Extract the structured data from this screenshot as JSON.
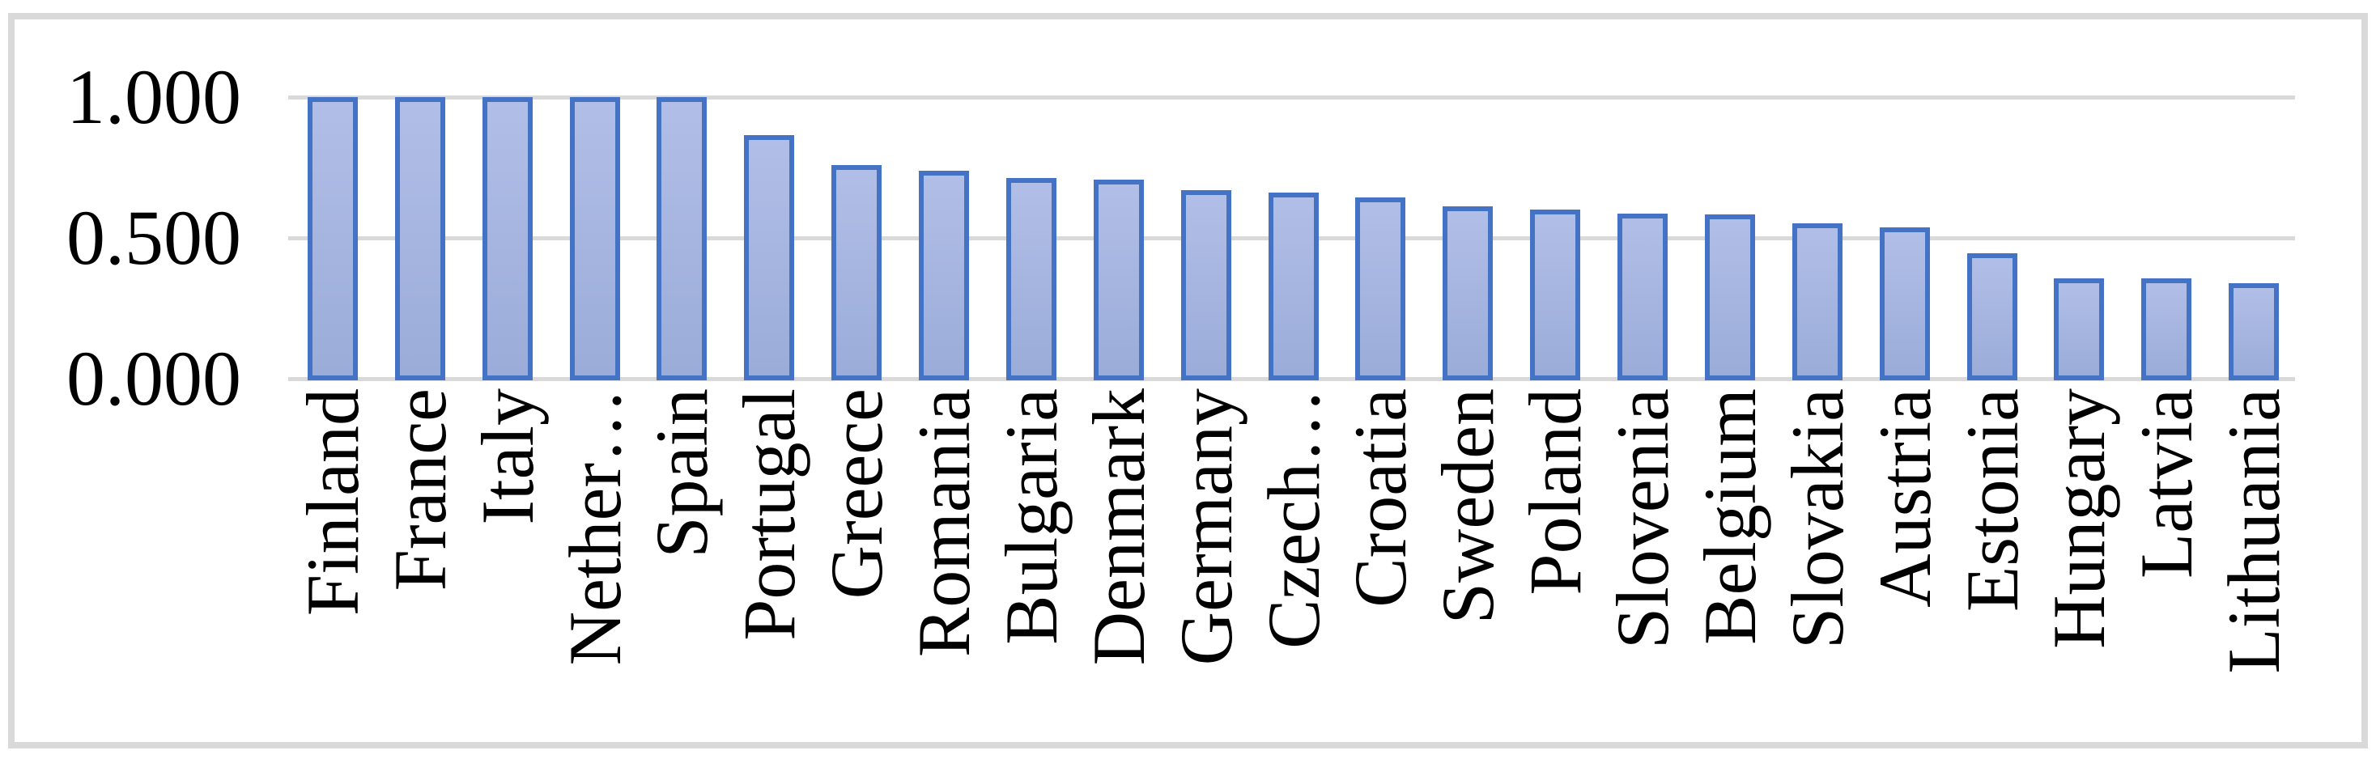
{
  "chart_data": {
    "type": "bar",
    "title": "",
    "xlabel": "",
    "ylabel": "",
    "categories": [
      "Finland",
      "France",
      "Italy",
      "Nether…",
      "Spain",
      "Portugal",
      "Greece",
      "Romania",
      "Bulgaria",
      "Denmark",
      "Germany",
      "Czech…",
      "Croatia",
      "Sweden",
      "Poland",
      "Slovenia",
      "Belgium",
      "Slovakia",
      "Austria",
      "Estonia",
      "Hungary",
      "Latvia",
      "Lithuania"
    ],
    "values": [
      1.0,
      1.0,
      1.0,
      1.0,
      1.0,
      0.865,
      0.759,
      0.739,
      0.713,
      0.707,
      0.67,
      0.661,
      0.644,
      0.612,
      0.601,
      0.586,
      0.584,
      0.552,
      0.537,
      0.445,
      0.356,
      0.356,
      0.339
    ],
    "ylim": [
      0,
      1
    ],
    "y_ticks": [
      {
        "label": "1.000",
        "value": 1.0
      },
      {
        "label": "0.500",
        "value": 0.5
      },
      {
        "label": "0.000",
        "value": 0.0
      }
    ],
    "grid": "horizontal",
    "legend": "none",
    "colors": {
      "bar_border": "#4472C4",
      "bar_fill_top": "#B1BEE7",
      "bar_fill_bottom": "#9BACD9",
      "gridline": "#D9D9D9",
      "frame_border": "#D9D9D9",
      "label_text": "#000000",
      "background": "#FFFFFF"
    }
  }
}
